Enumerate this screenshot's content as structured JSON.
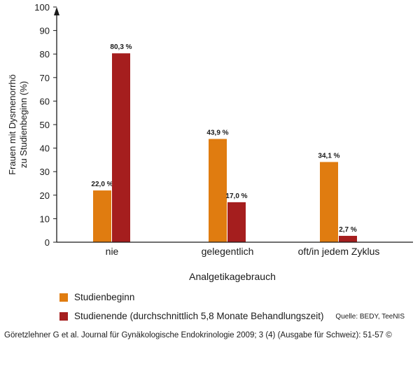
{
  "chart_data": {
    "type": "bar",
    "categories": [
      "nie",
      "gelegentlich",
      "oft/in jedem Zyklus"
    ],
    "series": [
      {
        "name": "Studienbeginn",
        "values": [
          22.0,
          43.9,
          34.1
        ],
        "labels": [
          "22,0 %",
          "43,9 %",
          "34,1 %"
        ],
        "color": "#e07c10"
      },
      {
        "name": "Studienende (durchschnittlich 5,8 Monate Behandlungszeit)",
        "values": [
          80.3,
          17.0,
          2.7
        ],
        "labels": [
          "80,3 %",
          "17,0 %",
          "2,7 %"
        ],
        "color": "#a51e1e"
      }
    ],
    "ylim": [
      0,
      100
    ],
    "yticks": [
      0,
      10,
      20,
      30,
      40,
      50,
      60,
      70,
      80,
      90,
      100
    ],
    "ylabel_lines": [
      "Frauen mit Dysmenorrhö",
      "zu Studienbeginn (%)"
    ],
    "xlabel": "Analgetikagebrauch",
    "grid": false,
    "legend_position": "bottom-left"
  },
  "source": "Quelle: BEDY, TeeNIS",
  "citation": "Göretzlehner G et al. Journal für Gynäkologische Endokrinologie 2009; 3 (4) (Ausgabe für Schweiz): 51-57 ©"
}
